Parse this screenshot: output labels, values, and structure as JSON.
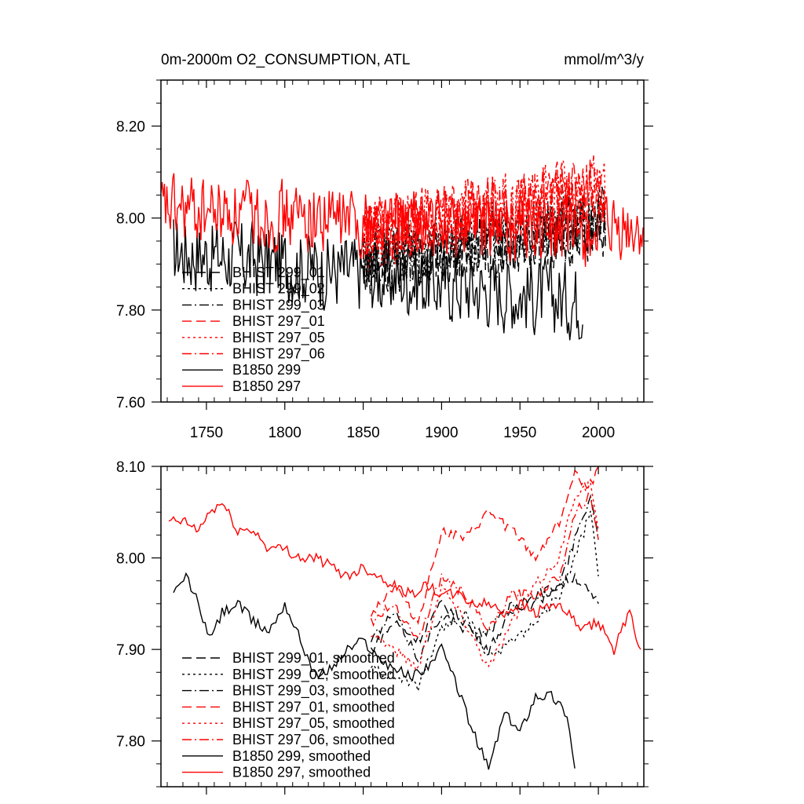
{
  "chart_data": [
    {
      "type": "line",
      "title": "0m-2000m O2_CONSUMPTION, ATL",
      "units": "mmol/m^3/y",
      "xlim": [
        1721,
        2029
      ],
      "ylim": [
        7.6,
        8.3
      ],
      "x_ticks": [
        1750,
        1800,
        1850,
        1900,
        1950,
        2000
      ],
      "x_tick_labels": [
        "1750",
        "1800",
        "1850",
        "1900",
        "1950",
        "2000"
      ],
      "y_ticks": [
        7.6,
        7.8,
        8.0,
        8.2
      ],
      "y_tick_labels": [
        "7.60",
        "7.80",
        "8.00",
        "8.20"
      ],
      "legend_position": "lower-left",
      "series": [
        {
          "name": "BHIST 299_01",
          "color": "#000000",
          "dash": "dash",
          "start": 1850,
          "end": 2005,
          "base": 7.9,
          "trend": 0.08,
          "amp": 0.07,
          "seed": 11
        },
        {
          "name": "BHIST 299_02",
          "color": "#000000",
          "dash": "dot",
          "start": 1850,
          "end": 2005,
          "base": 7.91,
          "trend": 0.1,
          "amp": 0.07,
          "seed": 12
        },
        {
          "name": "BHIST 299_03",
          "color": "#000000",
          "dash": "dashdot",
          "start": 1850,
          "end": 2005,
          "base": 7.9,
          "trend": 0.09,
          "amp": 0.07,
          "seed": 13
        },
        {
          "name": "BHIST 297_01",
          "color": "#ff0000",
          "dash": "dash",
          "start": 1850,
          "end": 2005,
          "base": 7.96,
          "trend": 0.1,
          "amp": 0.07,
          "seed": 14
        },
        {
          "name": "BHIST 297_05",
          "color": "#ff0000",
          "dash": "dot",
          "start": 1850,
          "end": 2005,
          "base": 7.96,
          "trend": 0.11,
          "amp": 0.07,
          "seed": 15
        },
        {
          "name": "BHIST 297_06",
          "color": "#ff0000",
          "dash": "dashdot",
          "start": 1850,
          "end": 2005,
          "base": 7.97,
          "trend": 0.1,
          "amp": 0.07,
          "seed": 16
        },
        {
          "name": "B1850 299",
          "color": "#000000",
          "dash": "solid",
          "start": 1729,
          "end": 1990,
          "base": 7.93,
          "trend": -0.11,
          "amp": 0.08,
          "seed": 17
        },
        {
          "name": "B1850 297",
          "color": "#ff0000",
          "dash": "solid",
          "start": 1721,
          "end": 2029,
          "base": 8.02,
          "trend": -0.06,
          "amp": 0.07,
          "seed": 18
        }
      ]
    },
    {
      "type": "line",
      "title": "",
      "xlim": [
        1721,
        2029
      ],
      "ylim": [
        7.75,
        8.1
      ],
      "x_ticks": [
        1750,
        1800,
        1850,
        1900,
        1950,
        2000
      ],
      "x_tick_labels": [
        "",
        "",
        "",
        "",
        "",
        ""
      ],
      "y_ticks": [
        7.8,
        7.9,
        8.0,
        8.1
      ],
      "y_tick_labels": [
        "7.80",
        "7.90",
        "8.00",
        "8.10"
      ],
      "legend_position": "lower-left",
      "series": [
        {
          "name": "BHIST 299_01, smoothed",
          "color": "#000000",
          "dash": "dash",
          "x": [
            1855,
            1870,
            1885,
            1900,
            1915,
            1930,
            1945,
            1960,
            1975,
            1985,
            1995,
            2000
          ],
          "y": [
            7.9,
            7.93,
            7.91,
            7.95,
            7.93,
            7.9,
            7.94,
            7.96,
            7.97,
            7.98,
            7.96,
            7.95
          ]
        },
        {
          "name": "BHIST 299_02, smoothed",
          "color": "#000000",
          "dash": "dot",
          "x": [
            1855,
            1870,
            1885,
            1900,
            1915,
            1930,
            1945,
            1960,
            1975,
            1985,
            1995,
            2000
          ],
          "y": [
            7.88,
            7.87,
            7.86,
            7.92,
            7.94,
            7.89,
            7.91,
            7.93,
            7.96,
            8.0,
            8.05,
            7.98
          ]
        },
        {
          "name": "BHIST 299_03, smoothed",
          "color": "#000000",
          "dash": "dashdot",
          "x": [
            1855,
            1870,
            1885,
            1900,
            1915,
            1930,
            1945,
            1960,
            1975,
            1985,
            1995,
            2000
          ],
          "y": [
            7.91,
            7.94,
            7.89,
            7.94,
            7.92,
            7.92,
            7.95,
            7.95,
            7.97,
            8.02,
            8.07,
            8.02
          ]
        },
        {
          "name": "BHIST 297_01, smoothed",
          "color": "#ff0000",
          "dash": "dash",
          "x": [
            1855,
            1870,
            1885,
            1900,
            1915,
            1930,
            1945,
            1960,
            1975,
            1985,
            1995,
            2000
          ],
          "y": [
            7.94,
            7.97,
            7.93,
            8.03,
            8.02,
            8.05,
            8.03,
            8.0,
            8.04,
            8.09,
            8.08,
            8.1
          ]
        },
        {
          "name": "BHIST 297_05, smoothed",
          "color": "#ff0000",
          "dash": "dot",
          "x": [
            1855,
            1870,
            1885,
            1900,
            1915,
            1930,
            1945,
            1960,
            1975,
            1985,
            1995,
            2000
          ],
          "y": [
            7.92,
            7.9,
            7.88,
            7.97,
            7.93,
            7.88,
            7.93,
            7.97,
            8.0,
            8.07,
            8.08,
            8.03
          ]
        },
        {
          "name": "BHIST 297_06, smoothed",
          "color": "#ff0000",
          "dash": "dashdot",
          "x": [
            1855,
            1870,
            1885,
            1900,
            1915,
            1930,
            1945,
            1960,
            1975,
            1985,
            1995,
            2000
          ],
          "y": [
            7.93,
            7.95,
            7.91,
            7.98,
            7.96,
            7.92,
            7.96,
            7.96,
            7.98,
            8.05,
            8.07,
            8.02
          ]
        },
        {
          "name": "B1850 299, smoothed",
          "color": "#000000",
          "dash": "solid",
          "x": [
            1729,
            1737,
            1745,
            1752,
            1760,
            1770,
            1780,
            1790,
            1800,
            1810,
            1820,
            1830,
            1840,
            1850,
            1860,
            1870,
            1880,
            1890,
            1900,
            1910,
            1920,
            1930,
            1940,
            1950,
            1960,
            1970,
            1980,
            1985
          ],
          "y": [
            7.96,
            7.98,
            7.95,
            7.91,
            7.94,
            7.95,
            7.93,
            7.92,
            7.95,
            7.91,
            7.87,
            7.88,
            7.9,
            7.91,
            7.89,
            7.88,
            7.87,
            7.88,
            7.9,
            7.86,
            7.81,
            7.77,
            7.83,
            7.81,
            7.85,
            7.85,
            7.83,
            7.77
          ]
        },
        {
          "name": "B1850 297, smoothed",
          "color": "#ff0000",
          "dash": "solid",
          "x": [
            1726,
            1735,
            1745,
            1752,
            1760,
            1770,
            1780,
            1790,
            1800,
            1810,
            1820,
            1830,
            1840,
            1850,
            1860,
            1870,
            1880,
            1890,
            1900,
            1910,
            1920,
            1930,
            1940,
            1950,
            1960,
            1970,
            1980,
            1990,
            2000,
            2010,
            2020,
            2027
          ],
          "y": [
            8.04,
            8.04,
            8.03,
            8.05,
            8.06,
            8.03,
            8.03,
            8.01,
            8.01,
            8.0,
            8.0,
            7.99,
            7.98,
            7.99,
            7.98,
            7.97,
            7.96,
            7.97,
            7.96,
            7.96,
            7.95,
            7.95,
            7.94,
            7.95,
            7.94,
            7.95,
            7.94,
            7.92,
            7.93,
            7.9,
            7.94,
            7.9
          ]
        }
      ]
    }
  ]
}
